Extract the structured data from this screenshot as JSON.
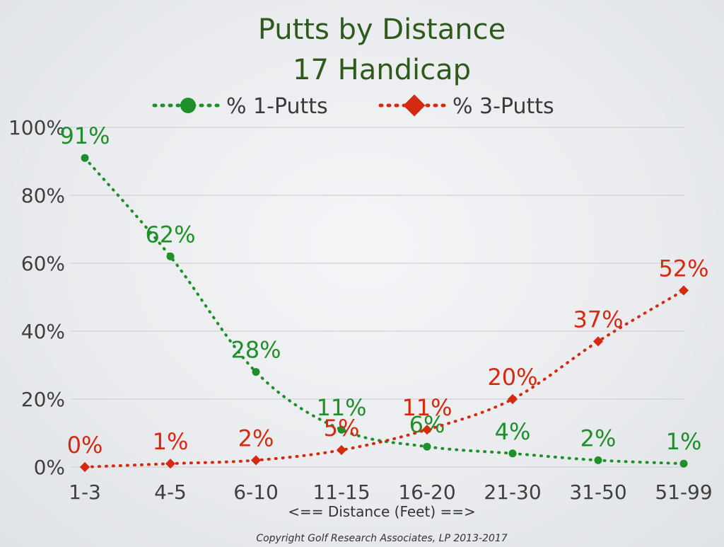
{
  "colors": {
    "series1": "#1f8f2a",
    "series2": "#d42a10",
    "title": "#2e5a1c"
  },
  "chart_data": {
    "type": "line",
    "title": "Putts by Distance",
    "subtitle": "17 Handicap",
    "xlabel": "<== Distance (Feet) ==>",
    "ylabel": "",
    "categories": [
      "1-3",
      "4-5",
      "6-10",
      "11-15",
      "16-20",
      "21-30",
      "31-50",
      "51-99"
    ],
    "yticks": [
      "0%",
      "20%",
      "40%",
      "60%",
      "80%",
      "100%"
    ],
    "ylim": [
      0,
      100
    ],
    "grid": true,
    "legend_position": "top",
    "series": [
      {
        "name": "% 1-Putts",
        "marker": "circle",
        "values": [
          91,
          62,
          28,
          11,
          6,
          4,
          2,
          1
        ],
        "labels": [
          "91%",
          "62%",
          "28%",
          "11%",
          "6%",
          "4%",
          "2%",
          "1%"
        ]
      },
      {
        "name": "% 3-Putts",
        "marker": "diamond",
        "values": [
          0,
          1,
          2,
          5,
          11,
          20,
          37,
          52
        ],
        "labels": [
          "0%",
          "1%",
          "2%",
          "5%",
          "11%",
          "20%",
          "37%",
          "52%"
        ]
      }
    ]
  },
  "footer": {
    "copyright": "Copyright Golf Research Associates, LP 2013-2017"
  }
}
